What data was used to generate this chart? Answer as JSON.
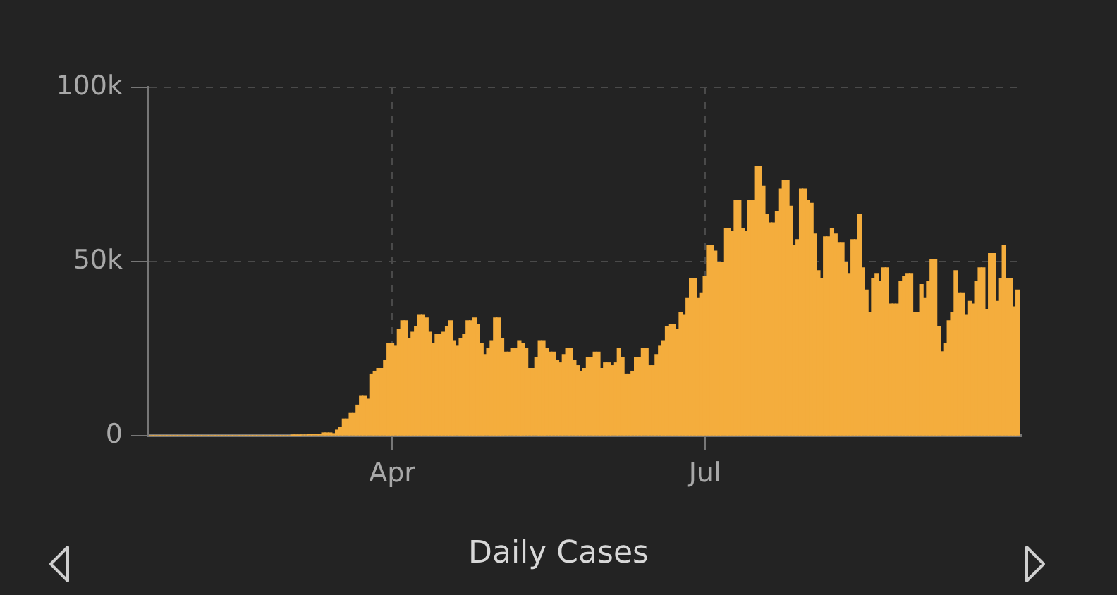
{
  "chart_data": {
    "type": "bar",
    "title": "Daily Cases",
    "x": [
      "--01-22",
      "--01-23",
      "--01-24",
      "--01-25",
      "--01-26",
      "--01-27",
      "--01-28",
      "--01-29",
      "--01-30",
      "--01-31",
      "--02-01",
      "--02-02",
      "--02-03",
      "--02-04",
      "--02-05",
      "--02-06",
      "--02-07",
      "--02-08",
      "--02-09",
      "--02-10",
      "--02-11",
      "--02-12",
      "--02-13",
      "--02-14",
      "--02-15",
      "--02-16",
      "--02-17",
      "--02-18",
      "--02-19",
      "--02-20",
      "--02-21",
      "--02-22",
      "--02-23",
      "--02-24",
      "--02-25",
      "--02-26",
      "--02-27",
      "--02-28",
      "--02-29",
      "--03-01",
      "--03-02",
      "--03-03",
      "--03-04",
      "--03-05",
      "--03-06",
      "--03-07",
      "--03-08",
      "--03-09",
      "--03-10",
      "--03-11",
      "--03-12",
      "--03-13",
      "--03-14",
      "--03-15",
      "--03-16",
      "--03-17",
      "--03-18",
      "--03-19",
      "--03-20",
      "--03-21",
      "--03-22",
      "--03-23",
      "--03-24",
      "--03-25",
      "--03-26",
      "--03-27",
      "--03-28",
      "--03-29",
      "--03-30",
      "--03-31",
      "--04-01",
      "--04-02",
      "--04-03",
      "--04-04",
      "--04-05",
      "--04-06",
      "--04-07",
      "--04-08",
      "--04-09",
      "--04-10",
      "--04-11",
      "--04-12",
      "--04-13",
      "--04-14",
      "--04-15",
      "--04-16",
      "--04-17",
      "--04-18",
      "--04-19",
      "--04-20",
      "--04-21",
      "--04-22",
      "--04-23",
      "--04-24",
      "--04-25",
      "--04-26",
      "--04-27",
      "--04-28",
      "--04-29",
      "--04-30",
      "--05-01",
      "--05-02",
      "--05-03",
      "--05-04",
      "--05-05",
      "--05-06",
      "--05-07",
      "--05-08",
      "--05-09",
      "--05-10",
      "--05-11",
      "--05-12",
      "--05-13",
      "--05-14",
      "--05-15",
      "--05-16",
      "--05-17",
      "--05-18",
      "--05-19",
      "--05-20",
      "--05-21",
      "--05-22",
      "--05-23",
      "--05-24",
      "--05-25",
      "--05-26",
      "--05-27",
      "--05-28",
      "--05-29",
      "--05-30",
      "--05-31",
      "--06-01",
      "--06-02",
      "--06-03",
      "--06-04",
      "--06-05",
      "--06-06",
      "--06-07",
      "--06-08",
      "--06-09",
      "--06-10",
      "--06-11",
      "--06-12",
      "--06-13",
      "--06-14",
      "--06-15",
      "--06-16",
      "--06-17",
      "--06-18",
      "--06-19",
      "--06-20",
      "--06-21",
      "--06-22",
      "--06-23",
      "--06-24",
      "--06-25",
      "--06-26",
      "--06-27",
      "--06-28",
      "--06-29",
      "--06-30",
      "--07-01",
      "--07-02",
      "--07-03",
      "--07-04",
      "--07-05",
      "--07-06",
      "--07-07",
      "--07-08",
      "--07-09",
      "--07-10",
      "--07-11",
      "--07-12",
      "--07-13",
      "--07-14",
      "--07-15",
      "--07-16",
      "--07-17",
      "--07-18",
      "--07-19",
      "--07-20",
      "--07-21",
      "--07-22",
      "--07-23",
      "--07-24",
      "--07-25",
      "--07-26",
      "--07-27",
      "--07-28",
      "--07-29",
      "--07-30",
      "--07-31",
      "--08-01",
      "--08-02",
      "--08-03",
      "--08-04",
      "--08-05",
      "--08-06",
      "--08-07",
      "--08-08",
      "--08-09",
      "--08-10",
      "--08-11",
      "--08-12",
      "--08-13",
      "--08-14",
      "--08-15",
      "--08-16",
      "--08-17",
      "--08-18",
      "--08-19",
      "--08-20",
      "--08-21",
      "--08-22",
      "--08-23",
      "--08-24",
      "--08-25",
      "--08-26",
      "--08-27",
      "--08-28",
      "--08-29",
      "--08-30",
      "--08-31",
      "--09-01",
      "--09-02",
      "--09-03",
      "--09-04",
      "--09-05",
      "--09-06",
      "--09-07",
      "--09-08",
      "--09-09",
      "--09-10",
      "--09-11",
      "--09-12",
      "--09-13",
      "--09-14",
      "--09-15",
      "--09-16",
      "--09-17",
      "--09-18",
      "--09-19",
      "--09-20",
      "--09-21",
      "--09-22",
      "--09-23",
      "--09-24",
      "--09-25",
      "--09-26",
      "--09-27",
      "--09-28",
      "--09-29",
      "--09-30"
    ],
    "values": [
      0,
      0,
      0,
      0,
      0,
      0,
      0,
      0,
      0,
      0,
      0,
      0,
      0,
      0,
      0,
      0,
      0,
      0,
      0,
      0,
      0,
      0,
      0,
      0,
      0,
      0,
      0,
      0,
      0,
      0,
      0,
      0,
      0,
      0,
      0,
      0,
      0,
      0,
      0,
      0,
      0,
      100,
      100,
      100,
      200,
      200,
      300,
      300,
      300,
      400,
      800,
      800,
      800,
      600,
      1600,
      2400,
      4800,
      4800,
      6400,
      6400,
      8800,
      11300,
      11300,
      10500,
      17700,
      18500,
      19300,
      19300,
      21700,
      26500,
      26500,
      25700,
      30500,
      33000,
      33000,
      28000,
      29700,
      31400,
      34600,
      34600,
      33800,
      29700,
      26500,
      29000,
      29000,
      29700,
      31400,
      33000,
      27300,
      25700,
      28000,
      29000,
      33000,
      33000,
      33800,
      32000,
      26500,
      23300,
      25000,
      27300,
      33800,
      33800,
      28000,
      24000,
      24000,
      25000,
      25000,
      27300,
      26500,
      25000,
      19300,
      19300,
      22500,
      27300,
      27300,
      25000,
      24000,
      24000,
      21700,
      20900,
      23300,
      25000,
      25000,
      21700,
      20100,
      18500,
      19300,
      22500,
      22500,
      24000,
      24000,
      19300,
      20900,
      20900,
      20100,
      20900,
      25000,
      22500,
      17700,
      17700,
      18500,
      22500,
      22500,
      25000,
      25000,
      20100,
      20100,
      23300,
      25700,
      27300,
      31400,
      32000,
      32000,
      30500,
      35400,
      34600,
      39400,
      45000,
      45000,
      39400,
      41000,
      45800,
      54700,
      54700,
      53000,
      49800,
      49800,
      59500,
      59500,
      58700,
      67500,
      67500,
      59500,
      58700,
      67500,
      67500,
      77200,
      77200,
      71600,
      63500,
      61100,
      61100,
      64300,
      70800,
      73200,
      73200,
      65900,
      54700,
      56300,
      70800,
      70800,
      67500,
      66700,
      57900,
      47400,
      45000,
      57100,
      57100,
      59500,
      57900,
      55500,
      55500,
      49800,
      46600,
      56300,
      56300,
      63500,
      48200,
      41800,
      35400,
      45000,
      46600,
      44200,
      48200,
      48200,
      37800,
      37800,
      37800,
      44200,
      45800,
      46600,
      46600,
      35400,
      35400,
      43400,
      39400,
      44200,
      50700,
      50700,
      31400,
      24100,
      26500,
      33000,
      35400,
      47400,
      41000,
      41000,
      34600,
      38600,
      37800,
      44200,
      48200,
      48200,
      36200,
      52300,
      52300,
      38600,
      45000,
      54700,
      45000,
      45000,
      37000,
      41800
    ],
    "color": "#f4ad3d",
    "xlim": [
      "--01-21",
      "--10-01"
    ],
    "xticks": [
      {
        "value": "--04-01",
        "label": "Apr"
      },
      {
        "value": "--07-01",
        "label": "Jul"
      }
    ],
    "ylim": [
      0,
      100000
    ],
    "yticks": [
      {
        "value": 0,
        "label": "0"
      },
      {
        "value": 50000,
        "label": "50k"
      },
      {
        "value": 100000,
        "label": "100k"
      }
    ],
    "grid": true
  }
}
